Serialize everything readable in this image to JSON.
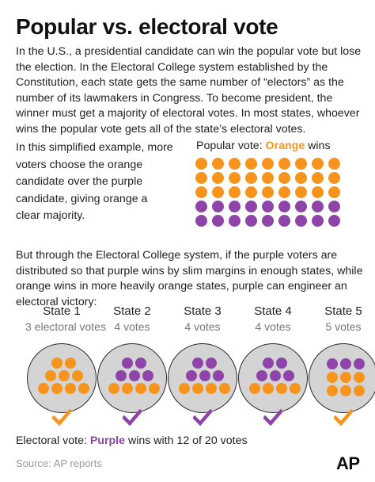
{
  "title": "Popular vs. electoral vote",
  "intro": "In the U.S., a presidential candidate can win the popular vote but lose the election. In the Electoral College system established by the Constitution, each state gets the same number of “electors” as the number of its lawmakers in Congress. To become  president, the winner must get a majority of electoral votes. In most states, whoever wins the popular vote gets all of the state’s electoral votes.",
  "example": "In this simplified example, more voters choose the orange candidate over the purple candidate, giving orange a clear majority.",
  "popular_vote": {
    "prefix": "Popular vote: ",
    "winner": "Orange",
    "suffix": " wins",
    "counts": {
      "orange": 27,
      "purple": 18
    }
  },
  "middle": "But through the Electoral College system, if the purple voters are distributed so that purple wins by slim margins in enough states, while orange wins in more heavily orange states, purple can engineer an electoral victory:",
  "states": [
    {
      "name": "State 1",
      "votes": "3 electoral votes",
      "orange": 9,
      "purple": 0,
      "winner": "orange"
    },
    {
      "name": "State 2",
      "votes": "4 votes",
      "orange": 4,
      "purple": 5,
      "winner": "purple"
    },
    {
      "name": "State 3",
      "votes": "4 votes",
      "orange": 4,
      "purple": 5,
      "winner": "purple"
    },
    {
      "name": "State 4",
      "votes": "4 votes",
      "orange": 4,
      "purple": 5,
      "winner": "purple"
    },
    {
      "name": "State 5",
      "votes": "5 votes",
      "orange": 6,
      "purple": 3,
      "winner": "orange"
    }
  ],
  "result": {
    "prefix": "Electoral vote: ",
    "winner": "Purple",
    "suffix": " wins with 12 of 20 votes"
  },
  "source": "Source: AP reports",
  "logo": "AP",
  "colors": {
    "orange": "#f7941d",
    "purple": "#8e44a8",
    "circle_fill": "#d4d4d4",
    "text": "#222222",
    "muted": "#999999"
  },
  "icons": {
    "check": "check-icon"
  }
}
